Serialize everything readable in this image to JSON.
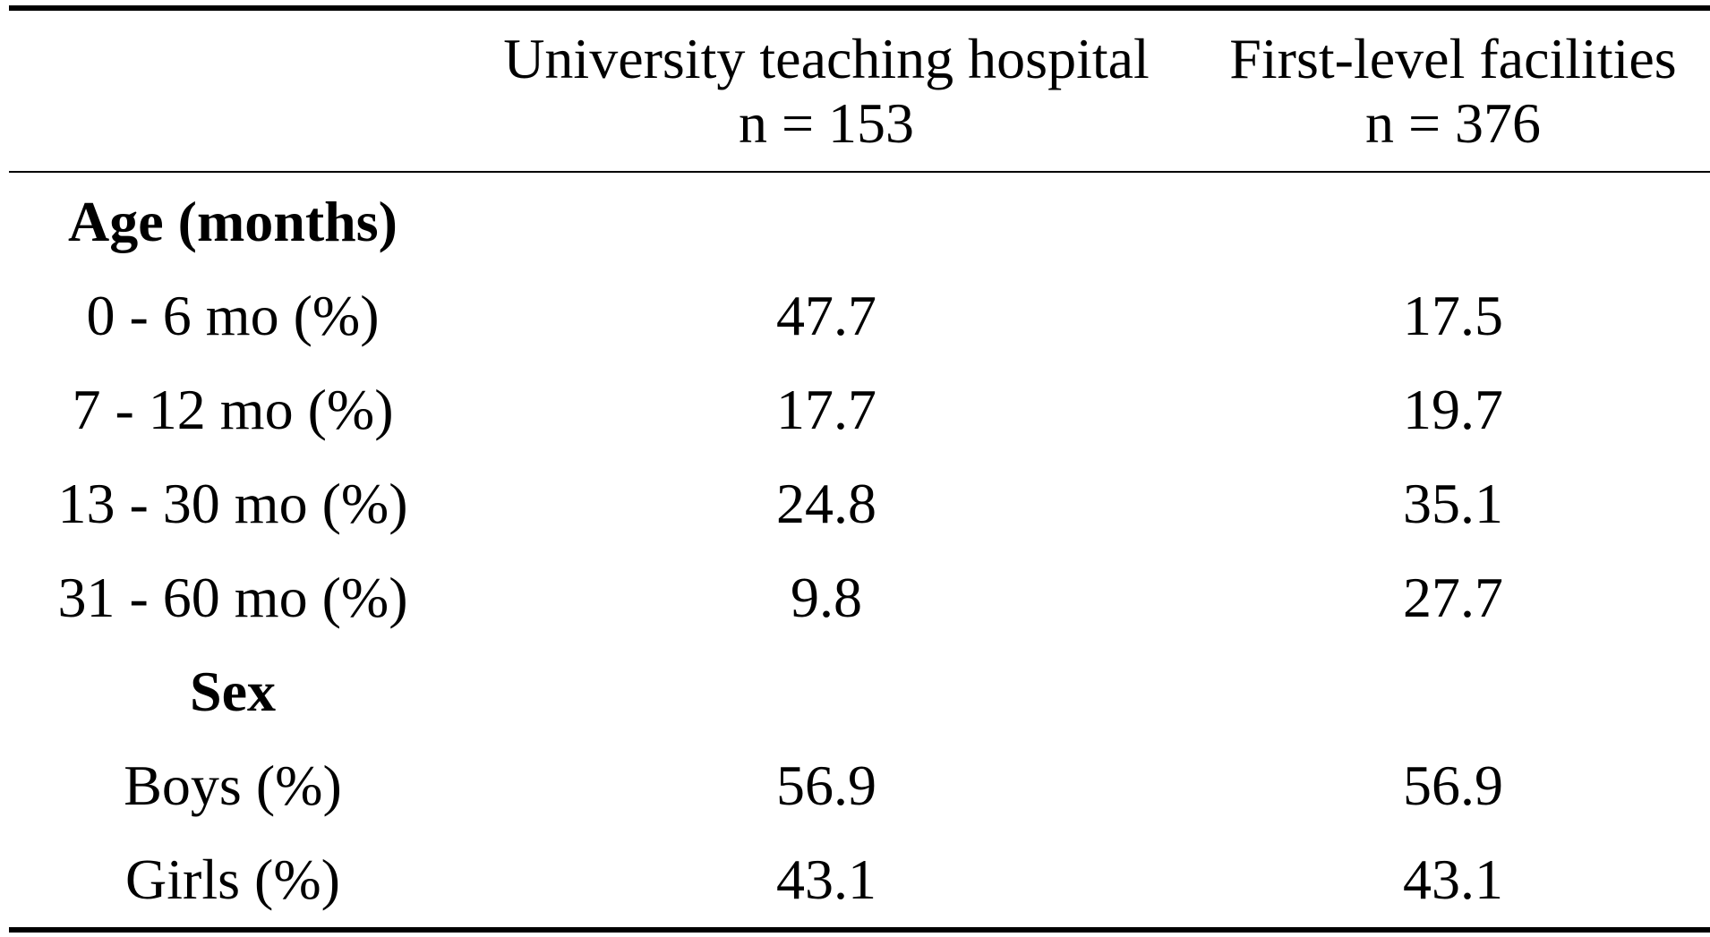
{
  "table": {
    "columns": [
      {
        "name": "University teaching hospital",
        "n": "n = 153"
      },
      {
        "name": "First-level facilities",
        "n": "n = 376"
      }
    ],
    "rows": [
      {
        "label": "Age (months)",
        "section": true,
        "v1": "",
        "v2": ""
      },
      {
        "label": "0 - 6 mo (%)",
        "section": false,
        "v1": "47.7",
        "v2": "17.5"
      },
      {
        "label": "7 - 12 mo (%)",
        "section": false,
        "v1": "17.7",
        "v2": "19.7"
      },
      {
        "label": "13 - 30 mo (%)",
        "section": false,
        "v1": "24.8",
        "v2": "35.1"
      },
      {
        "label": "31 - 60 mo (%)",
        "section": false,
        "v1": "9.8",
        "v2": "27.7"
      },
      {
        "label": "Sex",
        "section": true,
        "v1": "",
        "v2": ""
      },
      {
        "label": "Boys (%)",
        "section": false,
        "v1": "56.9",
        "v2": "56.9"
      },
      {
        "label": "Girls (%)",
        "section": false,
        "v1": "43.1",
        "v2": "43.1"
      }
    ]
  }
}
